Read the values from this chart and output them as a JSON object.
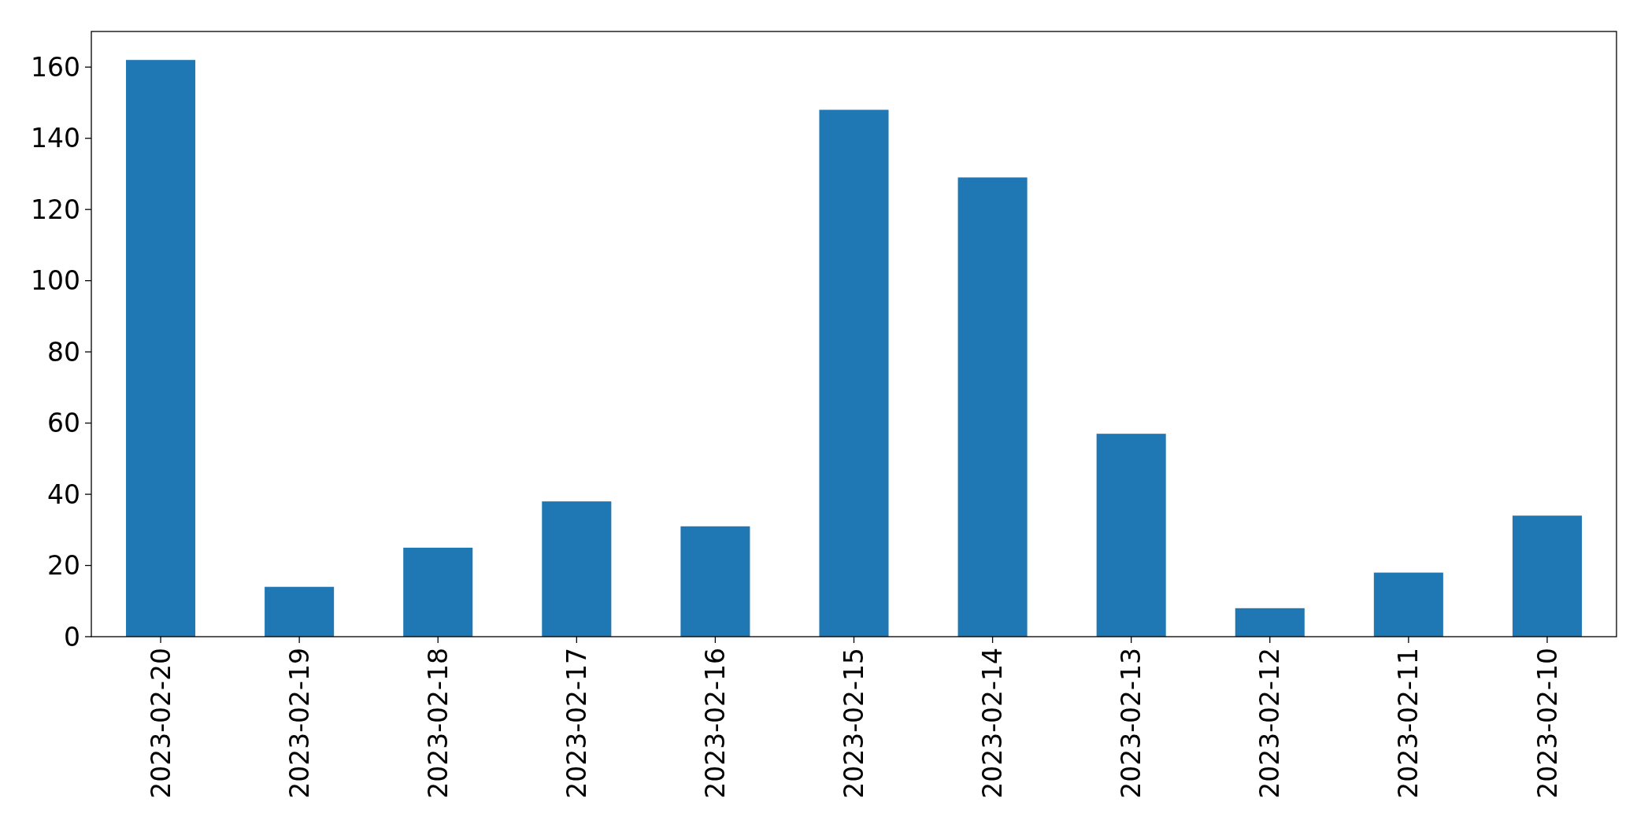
{
  "chart_data": {
    "type": "bar",
    "categories": [
      "2023-02-20",
      "2023-02-19",
      "2023-02-18",
      "2023-02-17",
      "2023-02-16",
      "2023-02-15",
      "2023-02-14",
      "2023-02-13",
      "2023-02-12",
      "2023-02-11",
      "2023-02-10"
    ],
    "values": [
      162,
      14,
      25,
      38,
      31,
      148,
      129,
      57,
      8,
      18,
      34
    ],
    "color": "#1f77b4",
    "ylim": [
      0,
      170
    ],
    "yticks": [
      0,
      20,
      40,
      60,
      80,
      100,
      120,
      140,
      160
    ],
    "grid": false
  }
}
